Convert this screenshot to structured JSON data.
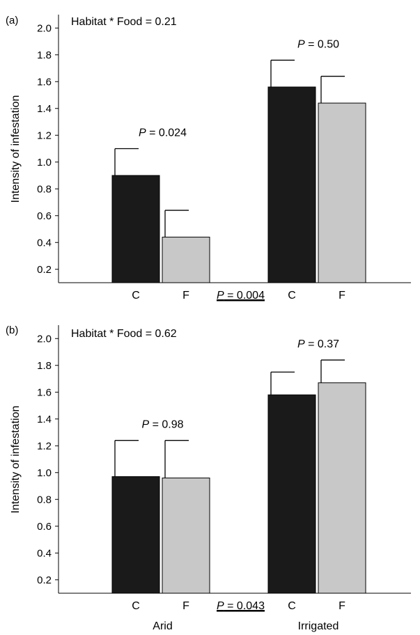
{
  "chart_data": [
    {
      "panel_label": "(a)",
      "type": "bar",
      "ylabel": "Intensity of infestation",
      "ylim": [
        0.1,
        2.1
      ],
      "yticks": [
        0.2,
        0.4,
        0.6,
        0.8,
        1.0,
        1.2,
        1.4,
        1.6,
        1.8,
        2.0
      ],
      "ytick_labels": [
        "0.2",
        "0.4",
        "0.6",
        "0.8",
        "1.0",
        "1.2",
        "1.4",
        "1.6",
        "1.8",
        "2.0"
      ],
      "interaction_label": "Habitat * Food = 0.21",
      "groups": [
        {
          "p_prefix": "P",
          "p_value": " = 0.024",
          "bars": [
            {
              "category": "C",
              "value": 0.9,
              "error": 0.2,
              "color": "#1a1a1a"
            },
            {
              "category": "F",
              "value": 0.44,
              "error": 0.2,
              "color": "#c8c8c8"
            }
          ]
        },
        {
          "p_prefix": "P",
          "p_value": " = 0.50",
          "bars": [
            {
              "category": "C",
              "value": 1.56,
              "error": 0.2,
              "color": "#1a1a1a"
            },
            {
              "category": "F",
              "value": 1.44,
              "error": 0.2,
              "color": "#c8c8c8"
            }
          ]
        }
      ],
      "between_prefix": "P",
      "between_value": " = 0.004"
    },
    {
      "panel_label": "(b)",
      "type": "bar",
      "ylabel": "Intensity of infestation",
      "ylim": [
        0.1,
        2.1
      ],
      "yticks": [
        0.2,
        0.4,
        0.6,
        0.8,
        1.0,
        1.2,
        1.4,
        1.6,
        1.8,
        2.0
      ],
      "ytick_labels": [
        "0.2",
        "0.4",
        "0.6",
        "0.8",
        "1.0",
        "1.2",
        "1.4",
        "1.6",
        "1.8",
        "2.0"
      ],
      "interaction_label": "Habitat * Food = 0.62",
      "groups": [
        {
          "name": "Arid",
          "p_prefix": "P",
          "p_value": " = 0.98",
          "bars": [
            {
              "category": "C",
              "value": 0.97,
              "error": 0.27,
              "color": "#1a1a1a"
            },
            {
              "category": "F",
              "value": 0.96,
              "error": 0.28,
              "color": "#c8c8c8"
            }
          ]
        },
        {
          "name": "Irrigated",
          "p_prefix": "P",
          "p_value": " = 0.37",
          "bars": [
            {
              "category": "C",
              "value": 1.58,
              "error": 0.17,
              "color": "#1a1a1a"
            },
            {
              "category": "F",
              "value": 1.67,
              "error": 0.17,
              "color": "#c8c8c8"
            }
          ]
        }
      ],
      "between_prefix": "P",
      "between_value": " = 0.043"
    }
  ]
}
